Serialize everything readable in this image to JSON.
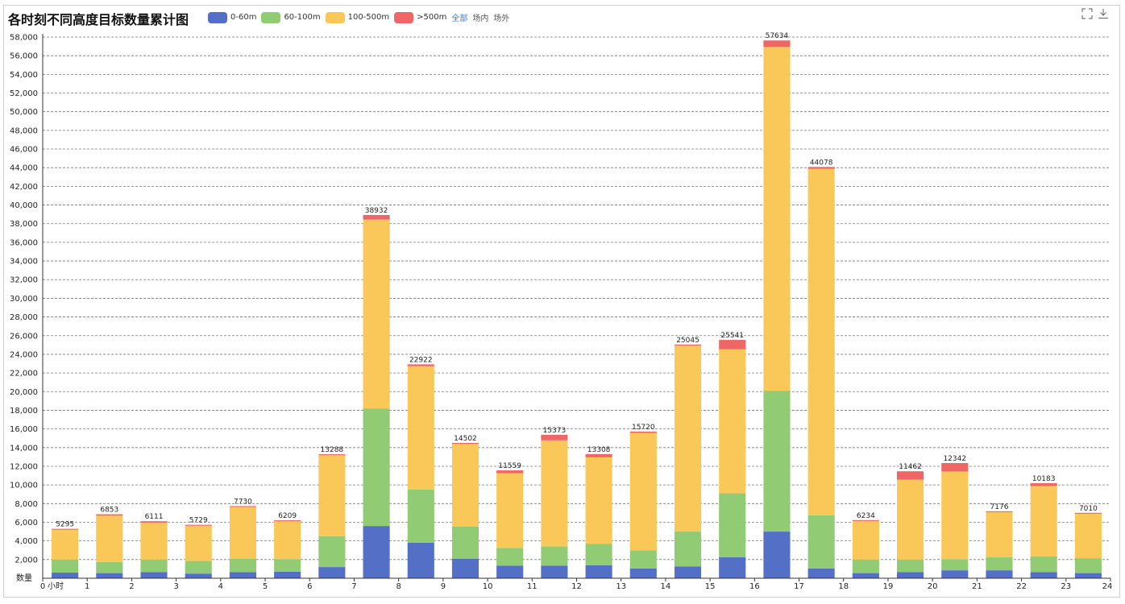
{
  "chart_data": {
    "type": "bar",
    "stacked": true,
    "title": "各时刻不同高度目标数量累计图",
    "ylabel": "数量",
    "xlabel": "小时",
    "ylim": [
      0,
      58000
    ],
    "ytick_step": 2000,
    "x_ticks": [
      "0",
      "1",
      "2",
      "3",
      "4",
      "5",
      "6",
      "7",
      "8",
      "9",
      "10",
      "11",
      "12",
      "13",
      "14",
      "15",
      "16",
      "17",
      "18",
      "19",
      "20",
      "21",
      "22",
      "23",
      "24"
    ],
    "categories": [
      "0",
      "1",
      "2",
      "3",
      "4",
      "5",
      "6",
      "7",
      "8",
      "9",
      "10",
      "11",
      "12",
      "13",
      "14",
      "15",
      "16",
      "17",
      "18",
      "19",
      "20",
      "21",
      "22",
      "23"
    ],
    "series": [
      {
        "name": "0-60m",
        "color": "#5470c6",
        "values": [
          600,
          550,
          650,
          500,
          650,
          700,
          1200,
          5600,
          3800,
          2100,
          1350,
          1350,
          1400,
          1050,
          1250,
          2250,
          5000,
          1050,
          550,
          650,
          850,
          850,
          650,
          550
        ]
      },
      {
        "name": "60-100m",
        "color": "#91cc75",
        "values": [
          1400,
          1200,
          1350,
          1350,
          1450,
          1350,
          3300,
          12600,
          5700,
          3450,
          1900,
          2050,
          2300,
          1950,
          3750,
          6850,
          15100,
          5700,
          1450,
          1350,
          1200,
          1400,
          1700,
          1600
        ]
      },
      {
        "name": "100-500m",
        "color": "#fac858",
        "values": [
          3195,
          4953,
          3961,
          3779,
          5530,
          4059,
          8688,
          20232,
          13222,
          8852,
          8009,
          11373,
          9258,
          12570,
          19945,
          15441,
          36834,
          37128,
          4134,
          8562,
          9392,
          4826,
          7533,
          4760
        ]
      },
      {
        "name": ">500m",
        "color": "#ee6666",
        "values": [
          100,
          150,
          150,
          100,
          100,
          100,
          100,
          500,
          200,
          100,
          300,
          600,
          350,
          150,
          100,
          1000,
          700,
          200,
          100,
          900,
          900,
          100,
          300,
          100
        ]
      }
    ],
    "totals": [
      5295,
      6853,
      6111,
      5729,
      7730,
      6209,
      13288,
      38932,
      22922,
      14502,
      11559,
      15373,
      13308,
      15720,
      25045,
      25541,
      57634,
      44078,
      6234,
      11462,
      12342,
      7176,
      10183,
      7010
    ],
    "legend_position": "top-left",
    "grid": "dashed horizontal"
  },
  "filters": [
    "全部",
    "场内",
    "场外"
  ],
  "active_filter": 0,
  "icons": {
    "fullscreen": "fullscreen-icon",
    "download": "download-icon"
  }
}
